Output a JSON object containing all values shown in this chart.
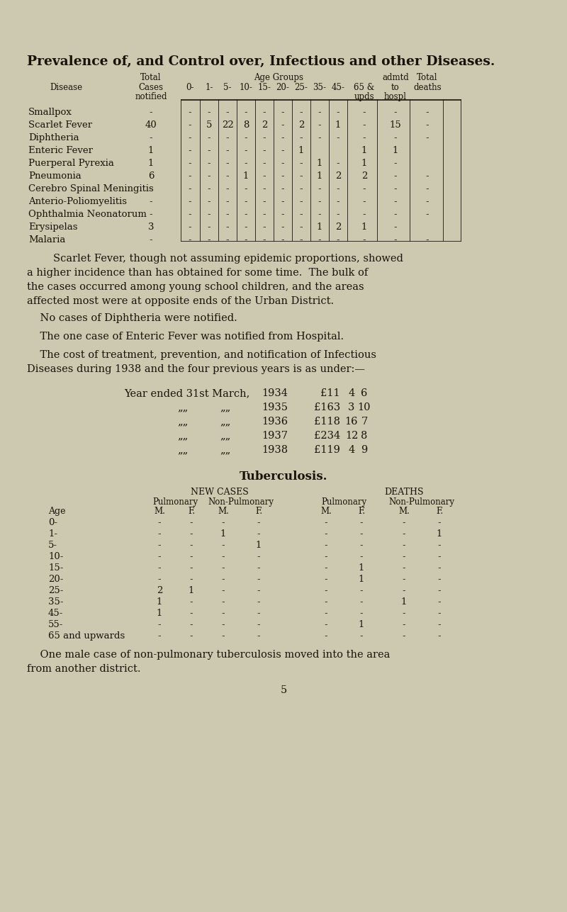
{
  "bg_color": "#ccc9b0",
  "text_color": "#1a1208",
  "title": "Prevalence of, and Control over, Infectious and other Diseases.",
  "diseases": [
    "Smallpox",
    "Scarlet Fever",
    "Diphtheria",
    "Enteric Fever",
    "Puerperal Pyrexia",
    "Pneumonia",
    "Cerebro Spinal Meningitis",
    "Anterio-Poliomyelitis",
    "Ophthalmia Neonatorum",
    "Erysipelas",
    "Malaria"
  ],
  "disease_display": [
    [
      "-",
      "-",
      "-",
      "-",
      "-",
      "-",
      "-",
      "-",
      "-",
      "-",
      "-",
      "-",
      "-"
    ],
    [
      "40",
      "-",
      "5",
      "22",
      "8",
      "2",
      "-",
      "2",
      "-",
      "1",
      "-",
      "15",
      "-"
    ],
    [
      "-",
      "-",
      "-",
      "-",
      "-",
      "-",
      "-",
      "-",
      "-",
      "-",
      "-",
      "-",
      "-"
    ],
    [
      "1",
      "-",
      "-",
      "-",
      "-",
      "-",
      "-",
      "1",
      "",
      "",
      "1",
      "1",
      ""
    ],
    [
      "1",
      "-",
      "-",
      "-",
      "-",
      "-",
      "-",
      "-",
      "1",
      "-",
      "1",
      "-",
      ""
    ],
    [
      "6",
      "-",
      "-",
      "-",
      "1",
      "-",
      "-",
      "-",
      "1",
      "2",
      "2",
      "-",
      "-"
    ],
    [
      "-",
      "-",
      "-",
      "-",
      "-",
      "-",
      "-",
      "-",
      "-",
      "-",
      "-",
      "-",
      "-"
    ],
    [
      "-",
      "-",
      "-",
      "-",
      "-",
      "-",
      "-",
      "-",
      "-",
      "-",
      "-",
      "-",
      "-"
    ],
    [
      "-",
      "-",
      "-",
      "-",
      "-",
      "-",
      "-",
      "-",
      "-",
      "-",
      "-",
      "-",
      "-"
    ],
    [
      "3",
      "-",
      "-",
      "-",
      "-",
      "-",
      "-",
      "-",
      "1",
      "2",
      "1",
      "-",
      ""
    ],
    [
      "-",
      "-",
      "-",
      "-",
      "-",
      "-",
      "-",
      "-",
      "-",
      "-",
      "-",
      "-",
      "-"
    ]
  ],
  "paragraph1": "        Scarlet Fever, though not assuming epidemic proportions, showed\na higher incidence than has obtained for some time.  The bulk of\nthe cases occurred among young school children, and the areas\naffected most were at opposite ends of the Urban District.",
  "paragraph2": "    No cases of Diphtheria were notified.",
  "paragraph3": "    The one case of Enteric Fever was notified from Hospital.",
  "paragraph4": "    The cost of treatment, prevention, and notification of Infectious\nDiseases during 1938 and the four previous years is as under:—",
  "cost_years": [
    "1934",
    "1935",
    "1936",
    "1937",
    "1938"
  ],
  "cost_amounts": [
    "£11",
    "£163",
    "£118",
    "£234",
    "£119"
  ],
  "cost_shillings": [
    "4",
    "3",
    "16",
    "12",
    "4"
  ],
  "cost_pence": [
    "6",
    "10",
    "7",
    "8",
    "9"
  ],
  "tb_title": "Tuberculosis.",
  "tb_ages": [
    "0-",
    "1-",
    "5-",
    "10-",
    "15-",
    "20-",
    "25-",
    "35-",
    "45-",
    "55-",
    "65 and upwards"
  ],
  "tb_data": [
    [
      "-",
      "-",
      "-",
      "-",
      "-",
      "-",
      "-",
      "-"
    ],
    [
      "-",
      "-",
      "1",
      "-",
      "-",
      "-",
      "-",
      "1"
    ],
    [
      "-",
      "-",
      "-",
      "1",
      "-",
      "-",
      "-",
      "-"
    ],
    [
      "-",
      "-",
      "-",
      "-",
      "-",
      "-",
      "-",
      "-"
    ],
    [
      "-",
      "-",
      "-",
      "-",
      "-",
      "1",
      "-",
      "-"
    ],
    [
      "-",
      "-",
      "-",
      "-",
      "-",
      "1",
      "-",
      "-"
    ],
    [
      "2",
      "1",
      "-",
      "-",
      "-",
      "-",
      "-",
      "-"
    ],
    [
      "1",
      "-",
      "-",
      "-",
      "-",
      "-",
      "1",
      "-"
    ],
    [
      "1",
      "-",
      "-",
      "-",
      "-",
      "-",
      "-",
      "-"
    ],
    [
      "-",
      "-",
      "-",
      "-",
      "-",
      "1",
      "-",
      "-"
    ],
    [
      "-",
      "-",
      "-",
      "-",
      "-",
      "-",
      "-",
      "-"
    ]
  ],
  "tb_footnote1": "    One male case of non-pulmonary tuberculosis moved into the area",
  "tb_footnote2": "from another district.",
  "page_number": "5"
}
